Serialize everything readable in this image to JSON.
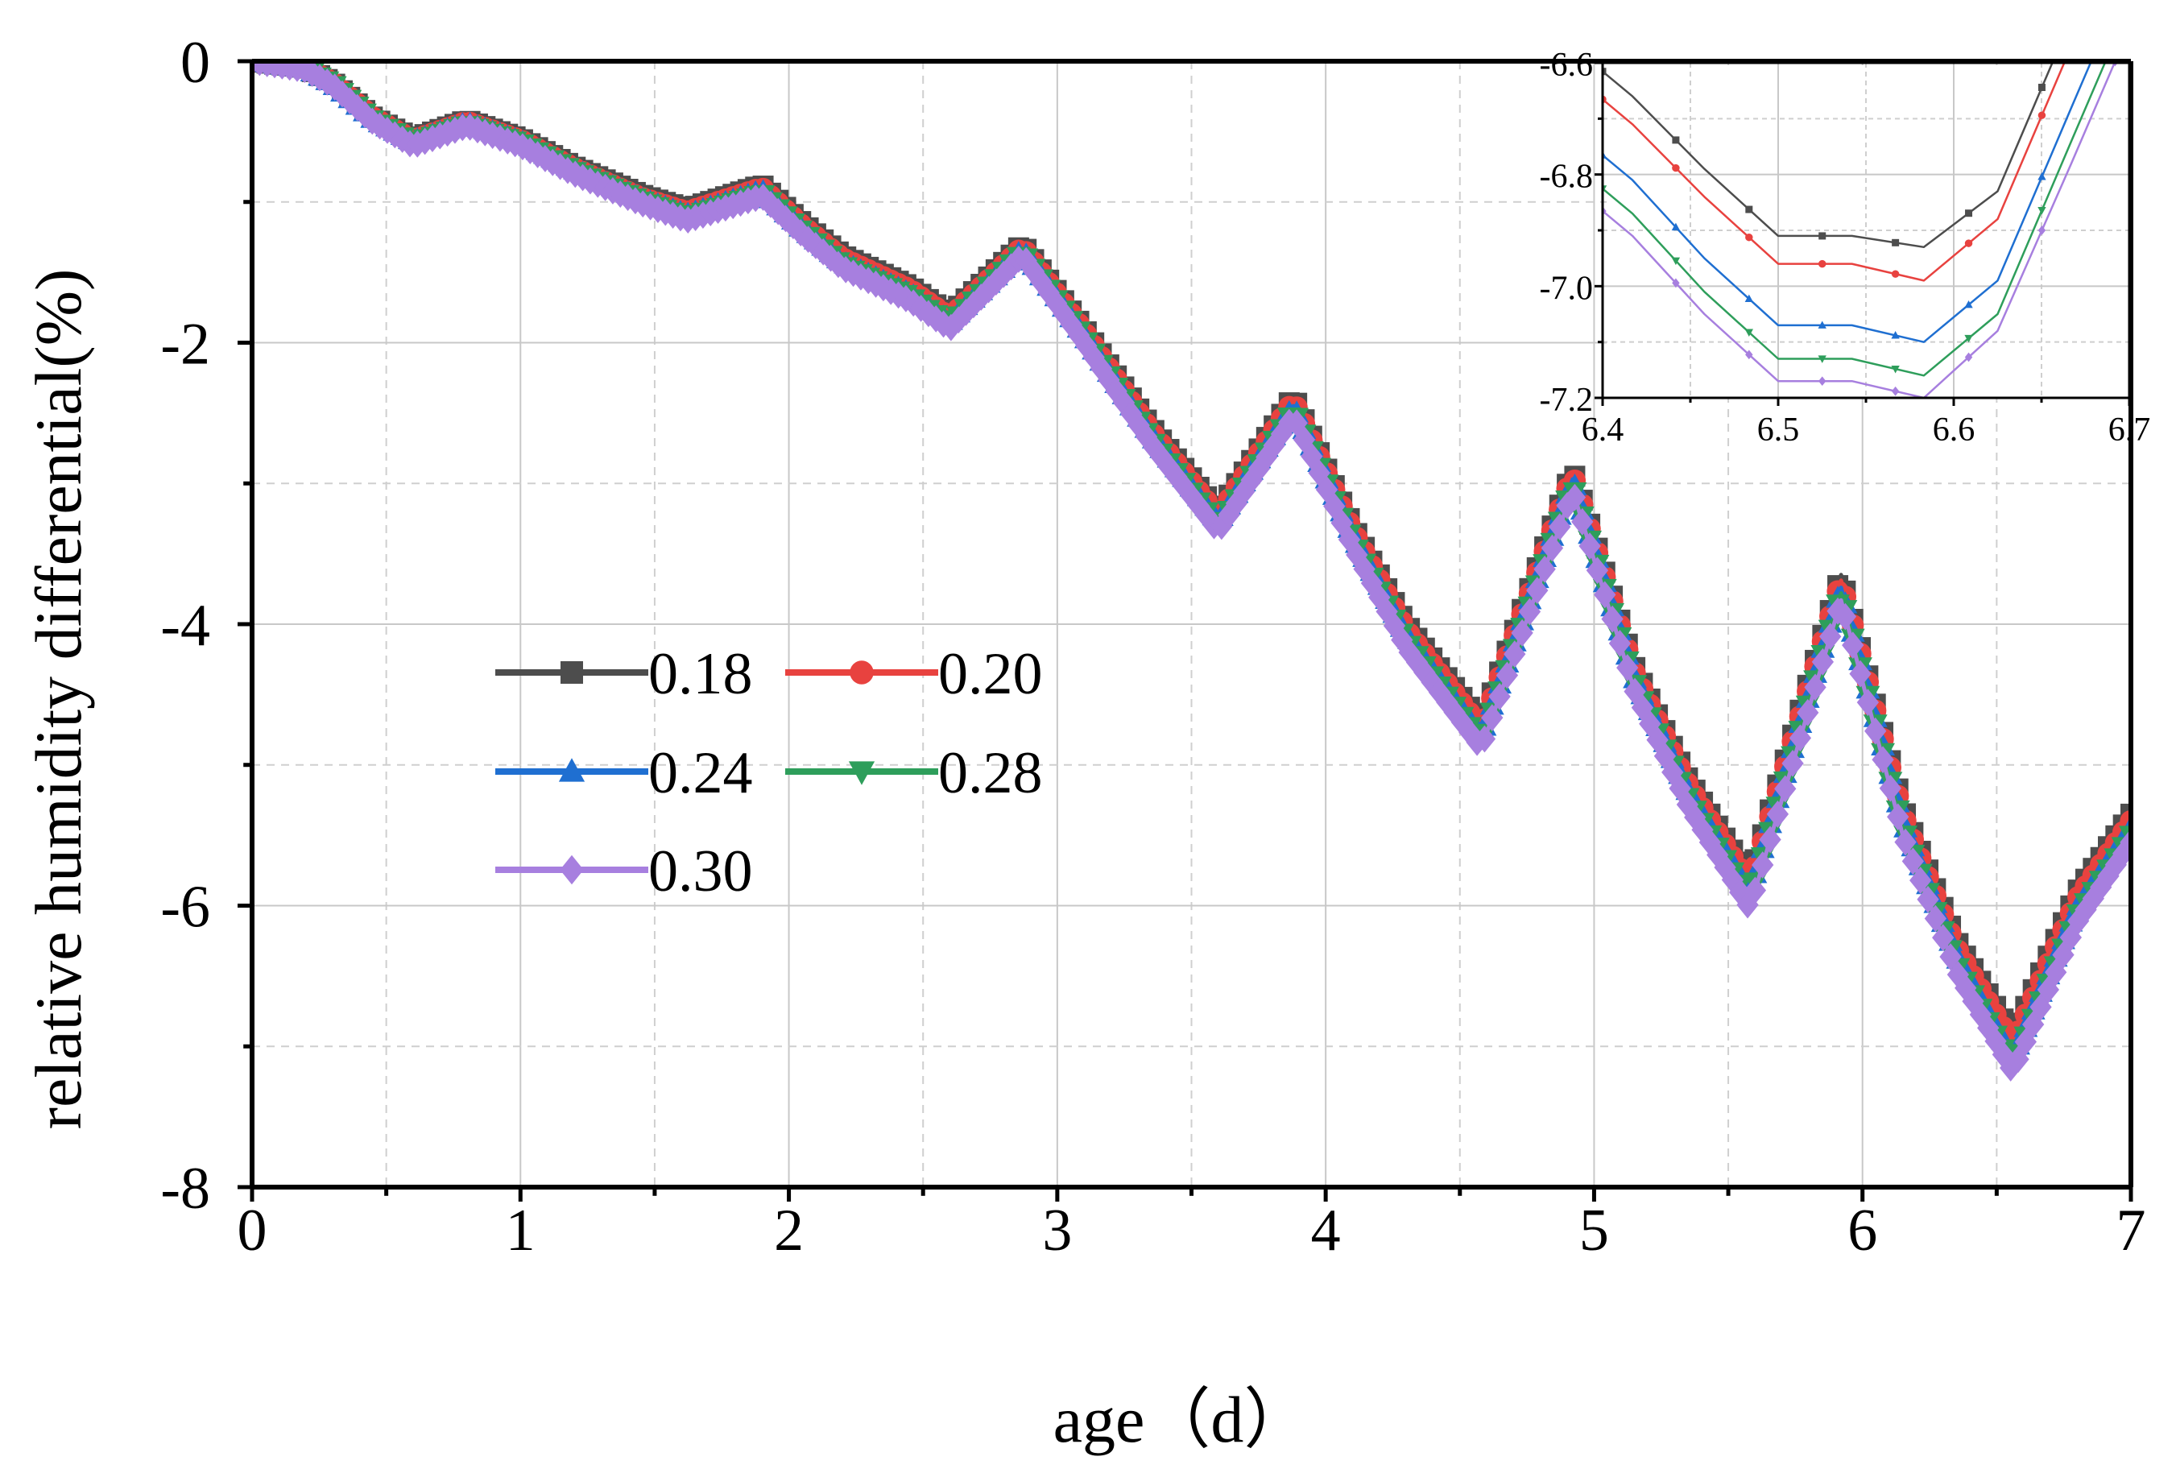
{
  "chart_data": [
    {
      "type": "line",
      "title": "",
      "xlabel": "age（d）",
      "ylabel": "relative humidity differential(%)",
      "xlim": [
        0,
        7
      ],
      "ylim": [
        -8,
        0
      ],
      "xticks": [
        0,
        1,
        2,
        3,
        4,
        5,
        6,
        7
      ],
      "xtick_labels": [
        "0",
        "1",
        "2",
        "3",
        "4",
        "5",
        "6",
        "7"
      ],
      "yticks": [
        0,
        -2,
        -4,
        -6,
        -8
      ],
      "ytick_labels": [
        "0",
        "-2",
        "-4",
        "-6",
        "-8"
      ],
      "grid": true,
      "legend_position": "center-left",
      "x": [
        0,
        0.2,
        0.3,
        0.45,
        0.6,
        0.8,
        1.0,
        1.2,
        1.45,
        1.62,
        1.9,
        2.05,
        2.2,
        2.45,
        2.6,
        2.87,
        3.1,
        3.35,
        3.6,
        3.88,
        4.1,
        4.3,
        4.58,
        4.92,
        5.15,
        5.35,
        5.58,
        5.92,
        6.15,
        6.35,
        6.56,
        6.8,
        7.0
      ],
      "series": [
        {
          "name": "0.18",
          "color": "#4d4d4d",
          "marker": "square",
          "values": [
            0,
            -0.05,
            -0.15,
            -0.4,
            -0.55,
            -0.42,
            -0.55,
            -0.75,
            -0.95,
            -1.05,
            -0.88,
            -1.15,
            -1.38,
            -1.6,
            -1.8,
            -1.3,
            -1.9,
            -2.6,
            -3.2,
            -2.38,
            -3.3,
            -4.0,
            -4.7,
            -2.9,
            -4.3,
            -5.1,
            -5.8,
            -3.65,
            -5.3,
            -6.25,
            -6.92,
            -5.9,
            -5.35
          ]
        },
        {
          "name": "0.20",
          "color": "#e8423f",
          "marker": "circle",
          "values": [
            0,
            -0.05,
            -0.15,
            -0.4,
            -0.56,
            -0.43,
            -0.56,
            -0.76,
            -0.97,
            -1.07,
            -0.9,
            -1.17,
            -1.4,
            -1.62,
            -1.82,
            -1.32,
            -1.92,
            -2.63,
            -3.23,
            -2.41,
            -3.33,
            -4.04,
            -4.74,
            -2.93,
            -4.34,
            -5.14,
            -5.85,
            -3.69,
            -5.35,
            -6.3,
            -6.98,
            -5.95,
            -5.4
          ]
        },
        {
          "name": "0.24",
          "color": "#1f6fd1",
          "marker": "triangle-up",
          "values": [
            0,
            -0.05,
            -0.16,
            -0.41,
            -0.57,
            -0.44,
            -0.57,
            -0.77,
            -0.98,
            -1.09,
            -0.92,
            -1.19,
            -1.43,
            -1.65,
            -1.85,
            -1.34,
            -1.95,
            -2.66,
            -3.27,
            -2.45,
            -3.37,
            -4.08,
            -4.79,
            -2.97,
            -4.38,
            -5.19,
            -5.9,
            -3.74,
            -5.4,
            -6.36,
            -7.08,
            -6.01,
            -5.45
          ]
        },
        {
          "name": "0.28",
          "color": "#2e9e5b",
          "marker": "triangle-down",
          "values": [
            0,
            -0.06,
            -0.16,
            -0.42,
            -0.58,
            -0.45,
            -0.58,
            -0.78,
            -0.99,
            -1.11,
            -0.94,
            -1.21,
            -1.45,
            -1.67,
            -1.87,
            -1.36,
            -1.97,
            -2.69,
            -3.31,
            -2.48,
            -3.41,
            -4.12,
            -4.84,
            -3.01,
            -4.42,
            -5.24,
            -5.96,
            -3.78,
            -5.45,
            -6.42,
            -7.14,
            -6.07,
            -5.5
          ]
        },
        {
          "name": "0.30",
          "color": "#a77fdf",
          "marker": "diamond",
          "values": [
            0,
            -0.06,
            -0.17,
            -0.43,
            -0.6,
            -0.46,
            -0.6,
            -0.8,
            -1.01,
            -1.13,
            -0.96,
            -1.23,
            -1.47,
            -1.7,
            -1.9,
            -1.38,
            -2.0,
            -2.72,
            -3.34,
            -2.52,
            -3.45,
            -4.17,
            -4.88,
            -3.05,
            -4.47,
            -5.29,
            -6.02,
            -3.83,
            -5.5,
            -6.47,
            -7.18,
            -6.12,
            -5.55
          ]
        }
      ]
    },
    {
      "type": "line",
      "title": "",
      "xlabel": "",
      "ylabel": "",
      "xlim": [
        6.4,
        6.7
      ],
      "ylim": [
        -7.2,
        -6.6
      ],
      "xticks": [
        6.4,
        6.5,
        6.6,
        6.7
      ],
      "xtick_labels": [
        "6.4",
        "6.5",
        "6.6",
        "6.7"
      ],
      "yticks": [
        -6.6,
        -6.8,
        -7.0,
        -7.2
      ],
      "ytick_labels": [
        "-6.6",
        "-6.8",
        "-7.0",
        "-7.2"
      ],
      "grid": true,
      "legend_position": "none",
      "x": [
        6.375,
        6.417,
        6.458,
        6.5,
        6.542,
        6.583,
        6.625,
        6.667,
        6.708
      ],
      "series": [
        {
          "name": "0.18",
          "color": "#4d4d4d",
          "marker": "square",
          "values": [
            -6.55,
            -6.66,
            -6.79,
            -6.91,
            -6.91,
            -6.93,
            -6.83,
            -6.52,
            -6.22
          ]
        },
        {
          "name": "0.20",
          "color": "#e8423f",
          "marker": "circle",
          "values": [
            -6.6,
            -6.71,
            -6.84,
            -6.96,
            -6.96,
            -6.99,
            -6.88,
            -6.57,
            -6.27
          ]
        },
        {
          "name": "0.24",
          "color": "#1f6fd1",
          "marker": "triangle-up",
          "values": [
            -6.7,
            -6.81,
            -6.95,
            -7.07,
            -7.07,
            -7.1,
            -6.99,
            -6.68,
            -6.38
          ]
        },
        {
          "name": "0.28",
          "color": "#2e9e5b",
          "marker": "triangle-down",
          "values": [
            -6.76,
            -6.87,
            -7.01,
            -7.13,
            -7.13,
            -7.16,
            -7.05,
            -6.74,
            -6.44
          ]
        },
        {
          "name": "0.30",
          "color": "#a77fdf",
          "marker": "diamond",
          "values": [
            -6.8,
            -6.91,
            -7.05,
            -7.17,
            -7.17,
            -7.2,
            -7.08,
            -6.78,
            -6.48
          ]
        }
      ]
    }
  ]
}
